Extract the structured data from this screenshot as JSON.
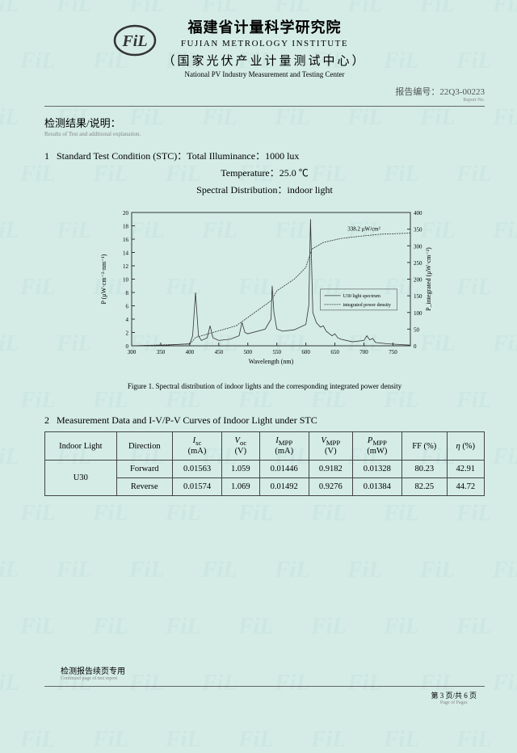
{
  "header": {
    "cn_title": "福建省计量科学研究院",
    "en_title": "FUJIAN METROLOGY INSTITUTE",
    "sub_cn": "（国家光伏产业计量测试中心）",
    "sub_en": "National PV Industry Measurement and Testing Center",
    "report_no_label": "报告编号：",
    "report_no": "22Q3-00223",
    "report_no_sub": "Report No."
  },
  "results": {
    "title": "检测结果/说明：",
    "sub": "Results of Test and additional explanation."
  },
  "section1": {
    "num": "1",
    "line1": "Standard Test Condition (STC)：Total Illuminance：1000 lux",
    "line2": "Temperature：25.0 ℃",
    "line3": "Spectral Distribution：indoor light"
  },
  "chart": {
    "y1_label": "P (μW·cm⁻²·nm⁻¹)",
    "y2_label": "P_integrated (μW·cm⁻²)",
    "x_label": "Wavelength (nm)",
    "annotation": "338.2 μW/cm²",
    "legend1": "U30 light spectrum",
    "legend2": "integrated power density",
    "y1_ticks": [
      "0",
      "2",
      "4",
      "6",
      "8",
      "10",
      "12",
      "14",
      "16",
      "18",
      "20"
    ],
    "y2_ticks": [
      "0",
      "50",
      "100",
      "150",
      "200",
      "250",
      "300",
      "350",
      "400"
    ],
    "x_ticks": [
      "300",
      "350",
      "400",
      "450",
      "500",
      "550",
      "600",
      "650",
      "700",
      "750"
    ],
    "spectrum_color": "#333333",
    "integrated_color": "#333333",
    "grid_color": "#333333",
    "y1_lim": [
      0,
      20
    ],
    "y2_lim": [
      0,
      400
    ],
    "x_lim": [
      300,
      780
    ],
    "spectrum_data": [
      [
        300,
        0
      ],
      [
        360,
        0.1
      ],
      [
        400,
        0.3
      ],
      [
        405,
        1.5
      ],
      [
        410,
        8
      ],
      [
        415,
        1.5
      ],
      [
        420,
        0.8
      ],
      [
        430,
        1.2
      ],
      [
        435,
        3
      ],
      [
        440,
        1.2
      ],
      [
        450,
        0.8
      ],
      [
        470,
        1
      ],
      [
        485,
        1.5
      ],
      [
        490,
        3.5
      ],
      [
        495,
        2
      ],
      [
        500,
        1.8
      ],
      [
        530,
        2.5
      ],
      [
        540,
        4
      ],
      [
        542,
        9
      ],
      [
        545,
        5
      ],
      [
        550,
        2.5
      ],
      [
        560,
        2.2
      ],
      [
        580,
        2.4
      ],
      [
        600,
        3.2
      ],
      [
        605,
        6
      ],
      [
        608,
        19
      ],
      [
        612,
        5
      ],
      [
        618,
        3.5
      ],
      [
        625,
        2.8
      ],
      [
        630,
        3
      ],
      [
        635,
        2.2
      ],
      [
        645,
        1.5
      ],
      [
        650,
        1.8
      ],
      [
        655,
        1.2
      ],
      [
        660,
        1
      ],
      [
        680,
        0.6
      ],
      [
        700,
        0.8
      ],
      [
        705,
        1.5
      ],
      [
        710,
        0.9
      ],
      [
        715,
        1.1
      ],
      [
        720,
        0.5
      ],
      [
        740,
        0.3
      ],
      [
        760,
        0.2
      ],
      [
        780,
        0.1
      ]
    ],
    "integrated_data": [
      [
        300,
        0
      ],
      [
        400,
        5
      ],
      [
        410,
        25
      ],
      [
        440,
        40
      ],
      [
        480,
        60
      ],
      [
        500,
        85
      ],
      [
        540,
        135
      ],
      [
        550,
        165
      ],
      [
        580,
        200
      ],
      [
        600,
        235
      ],
      [
        610,
        290
      ],
      [
        630,
        310
      ],
      [
        660,
        322
      ],
      [
        700,
        330
      ],
      [
        730,
        335
      ],
      [
        780,
        338
      ]
    ]
  },
  "fig_caption": "Figure 1. Spectral distribution of indoor lights and the corresponding integrated power density",
  "section2": {
    "num": "2",
    "title": "Measurement Data and I-V/P-V Curves of Indoor Light under STC"
  },
  "table": {
    "headers": [
      "Indoor Light",
      "Direction",
      "I_sc|(mA)",
      "V_oc|(V)",
      "I_MPP|(mA)",
      "V_MPP|(V)",
      "P_MPP|(mW)",
      "FF (%)",
      "η (%)"
    ],
    "row_label": "U30",
    "rows": [
      [
        "Forward",
        "0.01563",
        "1.059",
        "0.01446",
        "0.9182",
        "0.01328",
        "80.23",
        "42.91"
      ],
      [
        "Reverse",
        "0.01574",
        "1.069",
        "0.01492",
        "0.9276",
        "0.01384",
        "82.25",
        "44.72"
      ]
    ]
  },
  "footer": {
    "cont": "检测报告续页专用",
    "cont_sub": "Continued page of test report",
    "page": "第 3 页/共 6 页",
    "page_sub": "Page  of  Pages"
  }
}
